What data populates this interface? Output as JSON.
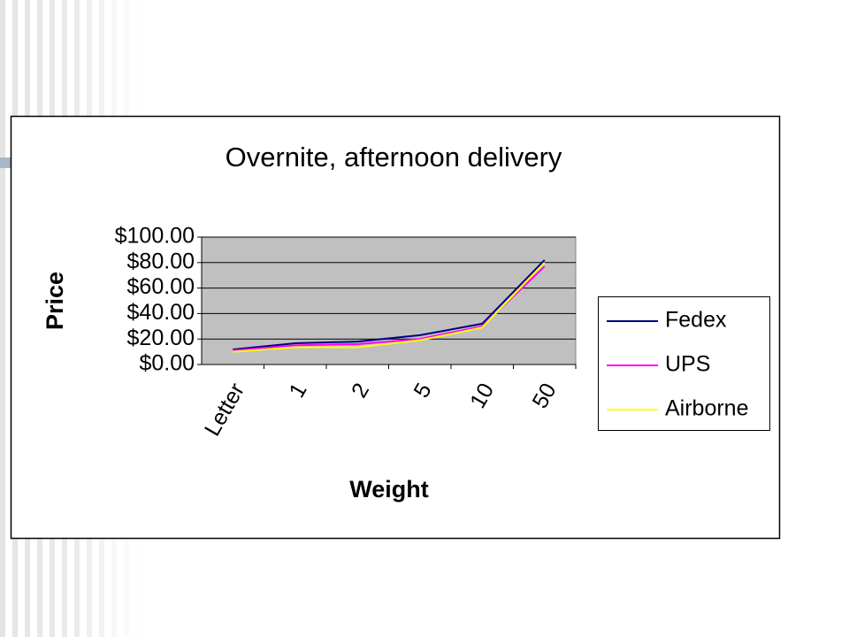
{
  "chart_data": {
    "type": "line",
    "title": "Overnite, afternoon delivery",
    "x_label": "Weight",
    "y_label": "Price",
    "categories": [
      "Letter",
      "1",
      "2",
      "5",
      "10",
      "50"
    ],
    "series": [
      {
        "name": "Fedex",
        "color": "#000080",
        "values": [
          11.8,
          16.7,
          18,
          23,
          32,
          82
        ]
      },
      {
        "name": "UPS",
        "color": "#ff00ff",
        "values": [
          11,
          15,
          16,
          20,
          30,
          77
        ]
      },
      {
        "name": "Airborne",
        "color": "#ffff00",
        "values": [
          10,
          13.5,
          13.5,
          19,
          29,
          80
        ]
      }
    ],
    "ylim": [
      0,
      100
    ],
    "yticks": [
      {
        "value": 0,
        "label": "$0.00"
      },
      {
        "value": 20,
        "label": "$20.00"
      },
      {
        "value": 40,
        "label": "$40.00"
      },
      {
        "value": 60,
        "label": "$60.00"
      },
      {
        "value": 80,
        "label": "$80.00"
      },
      {
        "value": 100,
        "label": "$100.00"
      }
    ],
    "grid": true,
    "legend": "right"
  }
}
